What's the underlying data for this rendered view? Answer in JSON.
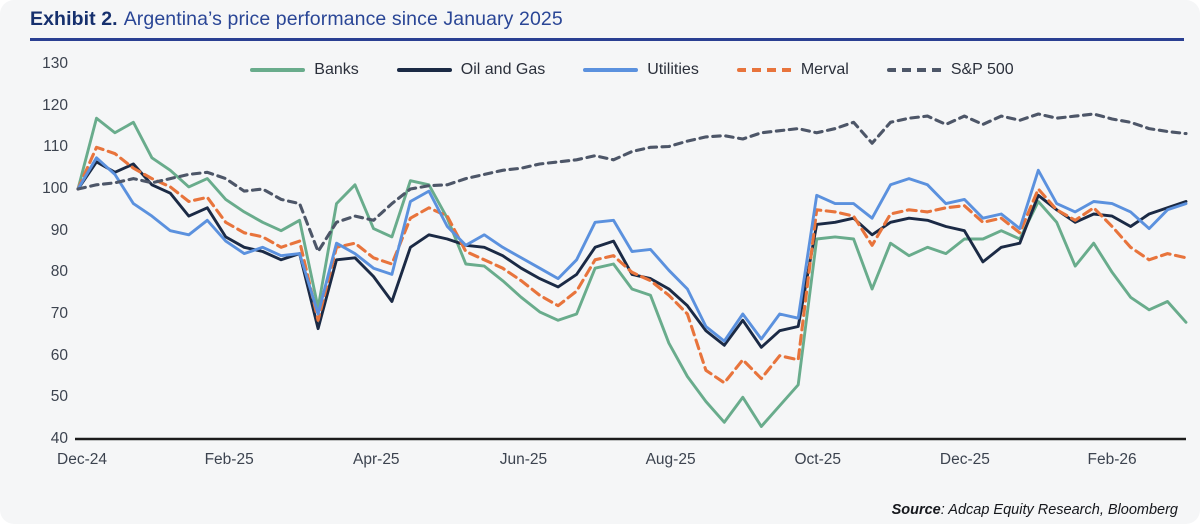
{
  "header": {
    "exhibit_label": "Exhibit 2.",
    "title": "Argentina’s price performance since January 2025"
  },
  "source": {
    "label": "Source",
    "text": ": Adcap Equity Research, Bloomberg"
  },
  "colors": {
    "background": "#f5f6f7",
    "title_bold": "#16306e",
    "title_rest": "#2a4696",
    "title_rule": "#2a3f92",
    "axis_text": "#3c434f",
    "axis_line": "#1c1c1c",
    "banks": "#69ac8c",
    "oil_and_gas": "#1b2a45",
    "utilities": "#5b91de",
    "merval": "#e8743c",
    "sp500": "#4d5668"
  },
  "chart_data": {
    "type": "line",
    "title": "Argentina’s price performance since January 2025",
    "index_base": 100,
    "ylim": [
      40,
      130
    ],
    "y_ticks": [
      130,
      120,
      110,
      100,
      90,
      80,
      70,
      60,
      50,
      40
    ],
    "x_tick_labels": [
      "Dec-24",
      "Feb-25",
      "Apr-25",
      "Jun-25",
      "Aug-25",
      "Oct-25",
      "Dec-25",
      "Feb-26"
    ],
    "grid": false,
    "legend_position": "top",
    "x": [
      "2024-12-31",
      "2025-01-07",
      "2025-01-14",
      "2025-01-21",
      "2025-01-28",
      "2025-02-04",
      "2025-02-11",
      "2025-02-18",
      "2025-02-25",
      "2025-03-04",
      "2025-03-11",
      "2025-03-18",
      "2025-03-25",
      "2025-04-01",
      "2025-04-08",
      "2025-04-15",
      "2025-04-22",
      "2025-04-29",
      "2025-05-06",
      "2025-05-13",
      "2025-05-20",
      "2025-05-27",
      "2025-06-03",
      "2025-06-10",
      "2025-06-17",
      "2025-06-24",
      "2025-07-01",
      "2025-07-08",
      "2025-07-15",
      "2025-07-22",
      "2025-07-29",
      "2025-08-05",
      "2025-08-12",
      "2025-08-19",
      "2025-08-26",
      "2025-09-02",
      "2025-09-09",
      "2025-09-16",
      "2025-09-23",
      "2025-09-30",
      "2025-10-07",
      "2025-10-14",
      "2025-10-21",
      "2025-10-28",
      "2025-11-04",
      "2025-11-11",
      "2025-11-18",
      "2025-11-25",
      "2025-12-02",
      "2025-12-09",
      "2025-12-16",
      "2025-12-23",
      "2025-12-30",
      "2026-01-06",
      "2026-01-13",
      "2026-01-20",
      "2026-01-27",
      "2026-02-03",
      "2026-02-10",
      "2026-02-17",
      "2026-02-24"
    ],
    "series": [
      {
        "name": "Banks",
        "color": "#69ac8c",
        "style": "solid",
        "values": [
          100,
          117,
          113.5,
          116,
          107.5,
          104.5,
          100.5,
          102.5,
          97.5,
          94.5,
          92,
          90,
          92.5,
          71.5,
          96.5,
          101,
          90.5,
          88.5,
          102,
          101,
          93,
          82,
          81.5,
          78,
          74,
          70.5,
          68.5,
          70,
          81,
          82,
          76,
          74.5,
          63,
          55,
          49,
          44,
          50,
          43,
          48,
          53,
          88,
          88.5,
          88,
          76,
          87,
          84,
          86,
          84.5,
          88,
          88,
          90,
          88,
          97,
          92,
          81.5,
          87,
          80,
          74,
          71,
          73,
          68
        ]
      },
      {
        "name": "Oil and Gas",
        "color": "#1b2a45",
        "style": "solid",
        "values": [
          100,
          106.5,
          104,
          106,
          101,
          99,
          93.5,
          95.5,
          88.5,
          86,
          85,
          83,
          84.5,
          66.5,
          83,
          83.5,
          79,
          73,
          86,
          89,
          88,
          86.5,
          86,
          84,
          81,
          78.5,
          76.5,
          79.5,
          86,
          87.5,
          79.5,
          78.5,
          76,
          72,
          66,
          62.5,
          68.5,
          62,
          66,
          67,
          91.5,
          92,
          93,
          89,
          92,
          93,
          92.5,
          91,
          90,
          82.5,
          86,
          87,
          98.5,
          95,
          92,
          94,
          93.5,
          91,
          94,
          95.5,
          97
        ]
      },
      {
        "name": "Utilities",
        "color": "#5b91de",
        "style": "solid",
        "values": [
          100,
          107.5,
          103.5,
          96.5,
          93.5,
          90,
          89,
          92.5,
          87.5,
          84.5,
          86,
          84,
          84.5,
          70,
          87,
          84.5,
          81,
          79.5,
          97,
          99.5,
          91,
          86.5,
          89,
          86,
          83.5,
          81,
          78.5,
          83,
          92,
          92.5,
          85,
          85.5,
          80.5,
          76,
          67,
          63.5,
          70,
          64,
          70,
          69,
          98.5,
          96.5,
          96.5,
          93,
          101,
          102.5,
          101,
          96.5,
          97.5,
          93,
          94,
          90.5,
          104.5,
          96.5,
          94.5,
          97,
          96.5,
          94.5,
          90.5,
          95,
          96.5
        ]
      },
      {
        "name": "Merval",
        "color": "#e8743c",
        "style": "dashed",
        "values": [
          100,
          110,
          108.5,
          105,
          102.5,
          100.5,
          97,
          98,
          92,
          89.5,
          88.5,
          86,
          87.5,
          68.5,
          86,
          87,
          83.5,
          82,
          93,
          95.5,
          93.5,
          85,
          83,
          81,
          78,
          74.5,
          72,
          75.5,
          83,
          84,
          80,
          78,
          74.5,
          70,
          56.5,
          53.5,
          59,
          54.5,
          60,
          59,
          95,
          94.5,
          93.5,
          86.5,
          94,
          95,
          94.5,
          95.5,
          96,
          92,
          93,
          89.5,
          100,
          95,
          92.5,
          95.5,
          91,
          86,
          83,
          84.5,
          83.5
        ]
      },
      {
        "name": "S&P 500",
        "color": "#4d5668",
        "style": "dashed",
        "values": [
          100,
          101,
          101.5,
          102.5,
          101.5,
          102.5,
          103.5,
          104,
          102.5,
          99.5,
          100,
          97.5,
          96.5,
          85,
          92,
          93.5,
          92.5,
          96.5,
          100,
          100.8,
          101,
          102.5,
          103.5,
          104.5,
          105,
          106,
          106.5,
          107,
          108,
          107,
          109,
          110,
          110.2,
          111.5,
          112.5,
          112.8,
          112,
          113.5,
          114,
          114.5,
          113.5,
          114.5,
          116,
          111,
          116,
          117,
          117.5,
          115.5,
          117.5,
          115.5,
          117.5,
          116.5,
          118,
          117,
          117.5,
          118,
          116.8,
          116,
          114.5,
          113.8,
          113.3
        ]
      }
    ]
  }
}
